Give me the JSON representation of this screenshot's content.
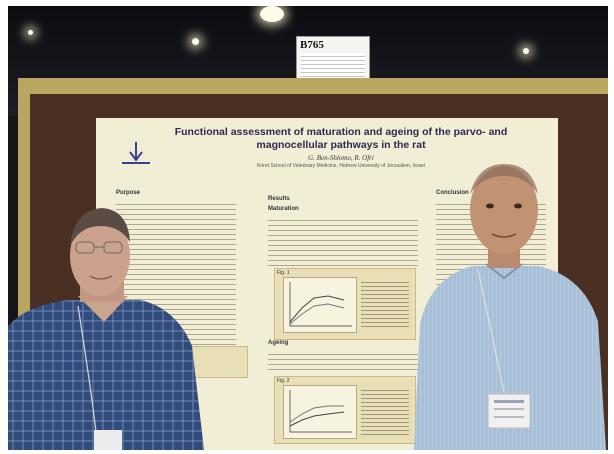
{
  "booth_sign": {
    "code": "B765"
  },
  "poster": {
    "title": "Functional assessment of maturation and ageing of the parvo- and magnocellular pathways in the rat",
    "authors": "G. Ben-Shlomo, R. Ofri",
    "affiliation": "Koret School of Veterinary Medicine, Hebrew University of Jerusalem, Israel",
    "sections": {
      "purpose": "Purpose",
      "results": "Results",
      "conclusion": "Conclusion",
      "maturation": "Maturation",
      "ageing": "Ageing"
    },
    "figures": {
      "fig1": "Fig. 1",
      "fig2": "Fig. 2"
    }
  },
  "colors": {
    "board_frame": "#b9a660",
    "board": "#4a3022",
    "poster_background": "#f2eed6",
    "title_text": "#2c2a50",
    "left_shirt": "#2f4c7d",
    "right_shirt": "#a8bfd8"
  },
  "icons": [
    "university-logo-icon"
  ]
}
